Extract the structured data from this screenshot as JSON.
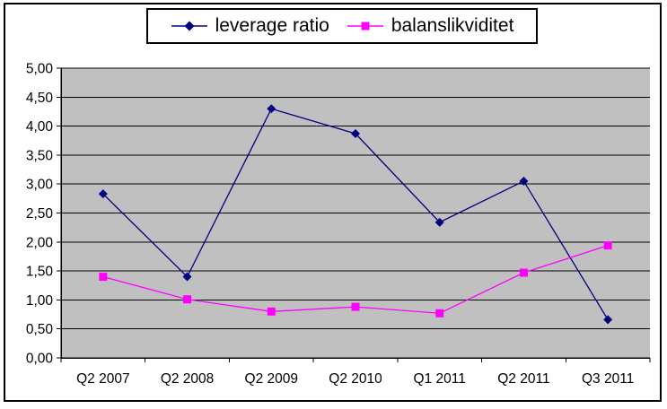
{
  "chart_data": {
    "type": "line",
    "categories": [
      "Q2 2007",
      "Q2 2008",
      "Q2 2009",
      "Q2 2010",
      "Q1 2011",
      "Q2 2011",
      "Q3 2011"
    ],
    "series": [
      {
        "name": "leverage ratio",
        "color": "#000080",
        "marker": "diamond",
        "values": [
          2.83,
          1.4,
          4.3,
          3.87,
          2.34,
          3.05,
          0.66
        ]
      },
      {
        "name": "balanslikviditet",
        "color": "#FF00FF",
        "marker": "square",
        "values": [
          1.4,
          1.01,
          0.8,
          0.88,
          0.77,
          1.47,
          1.94
        ]
      }
    ],
    "ylim": [
      0,
      5
    ],
    "ytick_step": 0.5,
    "y_tick_labels": [
      "0,00",
      "0,50",
      "1,00",
      "1,50",
      "2,00",
      "2,50",
      "3,00",
      "3,50",
      "4,00",
      "4,50",
      "5,00"
    ],
    "xlabel": "",
    "ylabel": "",
    "grid": true,
    "legend_position": "top-center",
    "colors": {
      "plot_background": "#C0C0C0",
      "axis": "#000000",
      "gridline": "#000000",
      "chart_background": "#FFFFFF",
      "border": "#000000"
    }
  }
}
